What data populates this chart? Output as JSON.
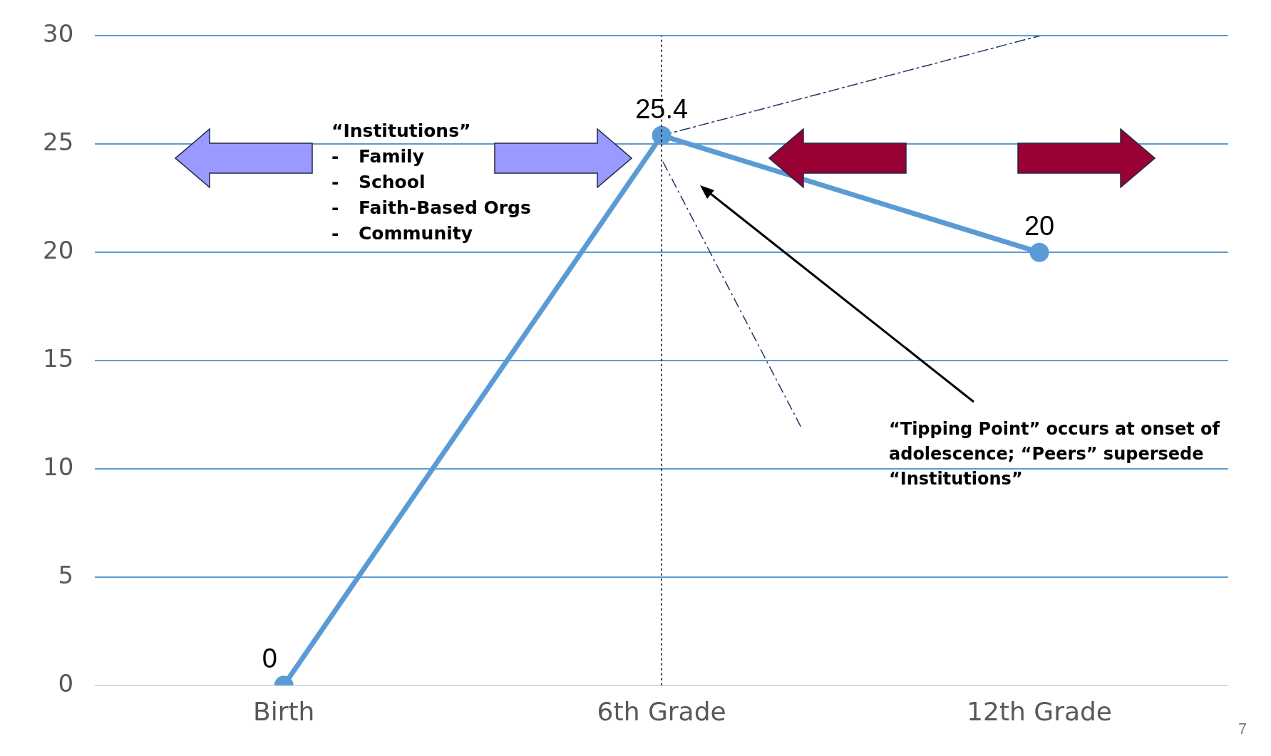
{
  "chart_data": {
    "type": "line",
    "categories": [
      "Birth",
      "6th Grade",
      "12th Grade"
    ],
    "ylim": [
      0,
      30
    ],
    "yticks": [
      0,
      5,
      10,
      15,
      20,
      25,
      30
    ],
    "grid": "y",
    "legend": false,
    "series": [
      {
        "color": "#5b9bd5",
        "values": [
          0,
          25.4,
          20
        ],
        "value_labels": [
          "0",
          "25.4",
          "20"
        ],
        "marker": "circle",
        "line_style": "solid"
      },
      {
        "color": "#1f3864",
        "values": [
          null,
          25.4,
          30
        ],
        "marker": "none",
        "line_style": "dashdot"
      }
    ],
    "ref_lines": [
      {
        "axis": "x",
        "value": "6th Grade",
        "color": "#000000",
        "line_style": "dotted"
      }
    ],
    "annotations": [
      "“Institutions”\n-\tFamily\n-\tSchool\n-\tFaith-Based Orgs\n-\tCommunity",
      "“Tipping Point” occurs at onset of\nadolescence; “Peers” supersede\n“Institutions”",
      "7"
    ]
  }
}
